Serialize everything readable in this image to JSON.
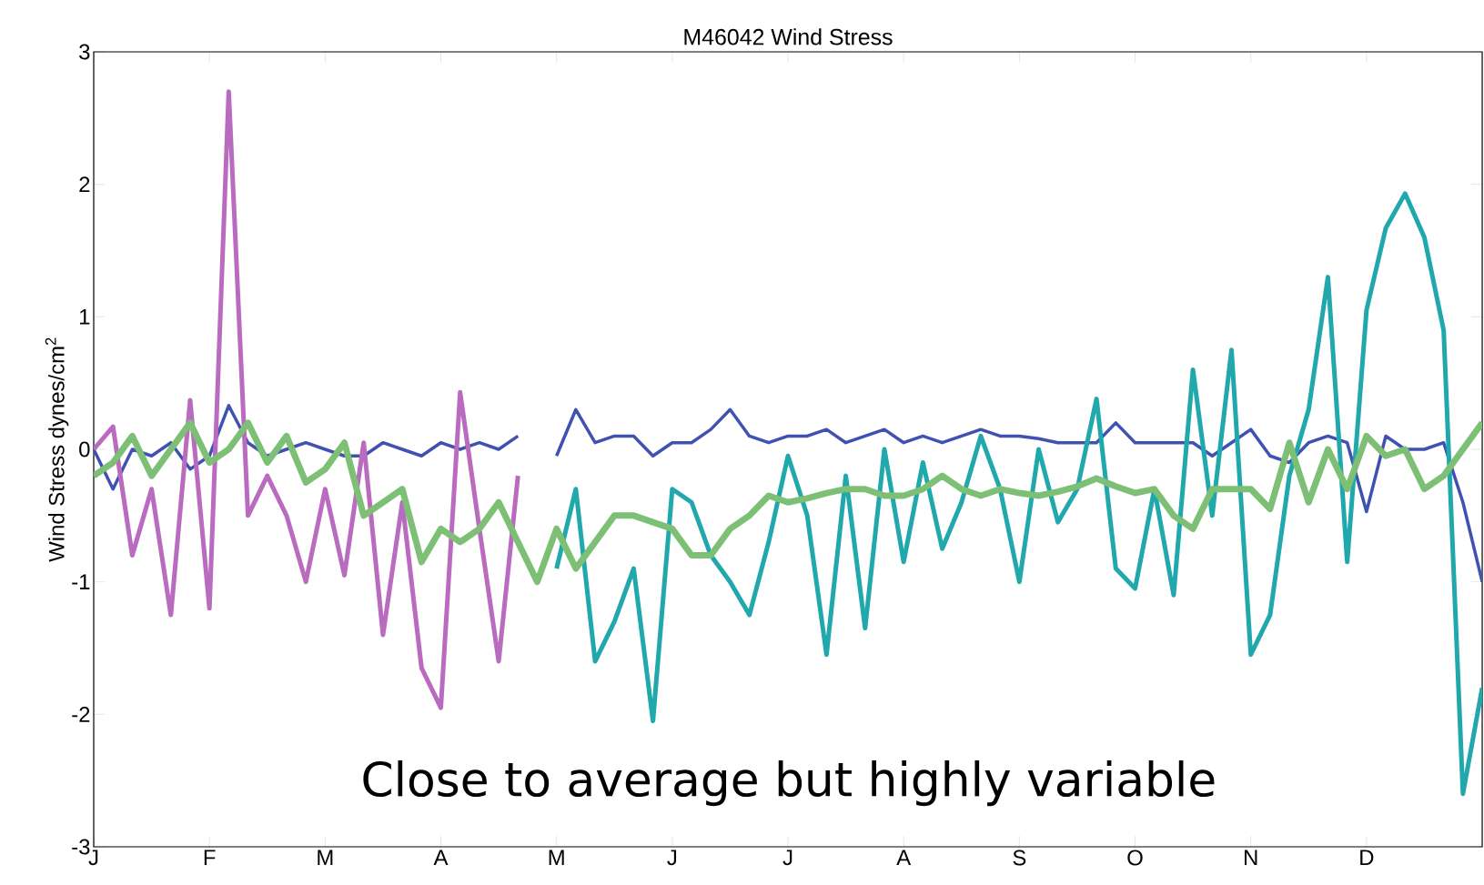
{
  "chart_data": {
    "type": "line",
    "title": "M46042 Wind Stress",
    "ylabel": "Wind Stress dynes/cm$^{2}$",
    "annotations": [
      "Close to average but highly variable"
    ],
    "categories": [
      "J",
      null,
      null,
      null,
      null,
      null,
      "F",
      null,
      null,
      null,
      null,
      null,
      "M",
      null,
      null,
      null,
      null,
      null,
      "A",
      null,
      null,
      null,
      null,
      null,
      "M",
      null,
      null,
      null,
      null,
      null,
      "J",
      null,
      null,
      null,
      null,
      null,
      "J",
      null,
      null,
      null,
      null,
      null,
      "A",
      null,
      null,
      null,
      null,
      null,
      "S",
      null,
      null,
      null,
      null,
      null,
      "O",
      null,
      null,
      null,
      null,
      null,
      "N",
      null,
      null,
      null,
      null,
      null,
      "D",
      null,
      null,
      null,
      null,
      null,
      null
    ],
    "ylim": [
      -3,
      3
    ],
    "yticks": [
      -3,
      -2,
      -1,
      0,
      1,
      2,
      3
    ],
    "grid": false,
    "marker": "none",
    "line_style": "solid",
    "series": [
      {
        "color": "#3f51b1",
        "values": [
          0,
          -0.3,
          0.0,
          -0.05,
          0.05,
          -0.15,
          -0.05,
          0.33,
          0.05,
          -0.05,
          0.0,
          0.05,
          0.0,
          -0.05,
          -0.05,
          0.05,
          0.0,
          -0.05,
          0.05,
          0.0,
          0.05,
          0.0,
          0.1,
          null,
          -0.05,
          0.3,
          0.05,
          0.1,
          0.1,
          -0.05,
          0.05,
          0.05,
          0.15,
          0.3,
          0.1,
          0.05,
          0.1,
          0.1,
          0.15,
          0.05,
          0.1,
          0.15,
          0.05,
          0.1,
          0.05,
          0.1,
          0.15,
          0.1,
          0.1,
          0.08,
          0.05,
          0.05,
          0.05,
          0.2,
          0.05,
          0.05,
          0.05,
          0.05,
          -0.05,
          0.05,
          0.15,
          -0.05,
          -0.1,
          0.05,
          0.1,
          0.05,
          -0.47,
          0.1,
          0.0,
          0.0,
          0.05,
          -0.4,
          -1.0
        ]
      },
      {
        "color": "#b86bbf",
        "values": [
          0,
          0.17,
          -0.8,
          -0.3,
          -1.25,
          0.37,
          -1.2,
          2.7,
          -0.5,
          -0.2,
          -0.5,
          -1.0,
          -0.3,
          -0.95,
          0.05,
          -1.4,
          -0.4,
          -1.65,
          -1.95,
          0.43,
          -0.6,
          -1.6,
          -0.2,
          null,
          null,
          null,
          null,
          null,
          null,
          null,
          null,
          null,
          null,
          null,
          null,
          null,
          null,
          null,
          null,
          null,
          null,
          null,
          null,
          null,
          null,
          null,
          null,
          null,
          null,
          null,
          null,
          null,
          null,
          null,
          null,
          null,
          null,
          null,
          null,
          null,
          null,
          null,
          null,
          null,
          null,
          null,
          null,
          null,
          null,
          null,
          null,
          null,
          null
        ]
      },
      {
        "color": "#20a8ad",
        "values": [
          null,
          null,
          null,
          null,
          null,
          null,
          null,
          null,
          null,
          null,
          null,
          null,
          null,
          null,
          null,
          null,
          null,
          null,
          null,
          null,
          null,
          null,
          null,
          null,
          -0.9,
          -0.3,
          -1.6,
          -1.3,
          -0.9,
          -2.05,
          -0.3,
          -0.4,
          -0.8,
          -1.0,
          -1.25,
          -0.7,
          -0.05,
          -0.5,
          -1.55,
          -0.2,
          -1.35,
          0.0,
          -0.85,
          -0.1,
          -0.75,
          -0.4,
          0.1,
          -0.3,
          -1.0,
          0.0,
          -0.55,
          -0.3,
          0.38,
          -0.9,
          -1.05,
          -0.3,
          -1.1,
          0.6,
          -0.5,
          0.75,
          -1.55,
          -1.25,
          -0.2,
          0.3,
          1.3,
          -0.85,
          1.05,
          1.67,
          1.93,
          1.6,
          0.9,
          -2.6,
          -1.8
        ]
      },
      {
        "color": "#7dbf74",
        "values": [
          -0.2,
          -0.1,
          0.1,
          -0.2,
          0.0,
          0.2,
          -0.1,
          0.0,
          0.2,
          -0.1,
          0.1,
          -0.25,
          -0.15,
          0.05,
          -0.5,
          -0.4,
          -0.3,
          -0.85,
          -0.6,
          -0.7,
          -0.6,
          -0.4,
          -0.7,
          -1.0,
          -0.6,
          -0.9,
          -0.7,
          -0.5,
          -0.5,
          -0.55,
          -0.6,
          -0.8,
          -0.8,
          -0.6,
          -0.5,
          -0.35,
          -0.4,
          -0.37,
          -0.33,
          -0.3,
          -0.3,
          -0.35,
          -0.35,
          -0.3,
          -0.2,
          -0.3,
          -0.35,
          -0.3,
          -0.33,
          -0.35,
          -0.32,
          -0.28,
          -0.22,
          -0.28,
          -0.33,
          -0.3,
          -0.5,
          -0.6,
          -0.3,
          -0.3,
          -0.3,
          -0.45,
          0.05,
          -0.4,
          0.0,
          -0.3,
          0.1,
          -0.05,
          0.0,
          -0.3,
          -0.2,
          0.0,
          0.2
        ]
      }
    ]
  }
}
